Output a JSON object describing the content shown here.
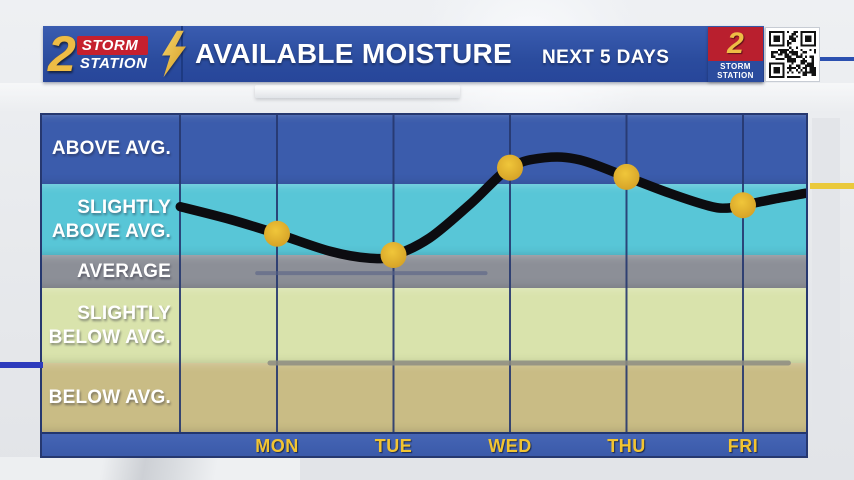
{
  "header": {
    "title": "AVAILABLE MOISTURE",
    "subtitle": "NEXT 5 DAYS"
  },
  "logos": {
    "main": {
      "number": "2",
      "line1": "STORM",
      "line2": "STATION"
    },
    "corner": {
      "number": "2",
      "line1": "STORM",
      "line2": "STATION"
    }
  },
  "colors": {
    "header_blue": "#2b4c9e",
    "day_bar_blue": "#3d5dac",
    "day_label_gold": "#f2c431",
    "grid_navy": "#26386f",
    "curve_black": "#0c0c10",
    "dot_gold": "#ddab2a",
    "accent_yellow_dash": "#eac93b",
    "accent_blue_dash": "#2d3bbd"
  },
  "chart_data": {
    "type": "line",
    "title": "AVAILABLE MOISTURE",
    "subtitle": "NEXT 5 DAYS",
    "categories": [
      "MON",
      "TUE",
      "WED",
      "THU",
      "FRI"
    ],
    "level_axis": {
      "min": -2.5,
      "max": 2.5,
      "note": "qualitative moisture bands, 0 = average"
    },
    "grid": "vertical gridline per day",
    "legend_position": "none",
    "y_bands": [
      {
        "label": "ABOVE AVG.",
        "level_range": [
          1.5,
          2.5
        ],
        "color": "#3b5cac"
      },
      {
        "label": "SLIGHTLY\nABOVE AVG.",
        "level_range": [
          0.5,
          1.5
        ],
        "color": "#58c6d7"
      },
      {
        "label": "AVERAGE",
        "level_range": [
          -0.5,
          0.5
        ],
        "color": "#8c8f97"
      },
      {
        "label": "SLIGHTLY\nBELOW AVG.",
        "level_range": [
          -1.5,
          -0.5
        ],
        "color": "#d9e3ac"
      },
      {
        "label": "BELOW AVG.",
        "level_range": [
          -2.5,
          -1.5
        ],
        "color": "#c9bc85"
      }
    ],
    "series": [
      {
        "name": "Available moisture",
        "line_color": "#0c0c10",
        "marker_color": "#ddab2a",
        "points": [
          {
            "day": "MON",
            "level": 0.8,
            "band": "SLIGHTLY ABOVE AVG."
          },
          {
            "day": "TUE",
            "level": 0.5,
            "band": "SLIGHTLY ABOVE AVG. (near average)"
          },
          {
            "day": "WED",
            "level": 1.73,
            "band": "ABOVE AVG."
          },
          {
            "day": "THU",
            "level": 1.6,
            "band": "ABOVE AVG."
          },
          {
            "day": "FRI",
            "level": 1.2,
            "band": "SLIGHTLY ABOVE AVG."
          }
        ],
        "curve_samples": [
          [
            -0.83,
            1.18
          ],
          [
            -0.4,
            1.0
          ],
          [
            0,
            0.8
          ],
          [
            0.46,
            0.55
          ],
          [
            0.8,
            0.4
          ],
          [
            1,
            0.48
          ],
          [
            1.31,
            0.74
          ],
          [
            1.66,
            1.22
          ],
          [
            2,
            1.73
          ],
          [
            2.3,
            1.87
          ],
          [
            2.6,
            1.84
          ],
          [
            3,
            1.6
          ],
          [
            3.37,
            1.37
          ],
          [
            3.71,
            1.19
          ],
          [
            3.86,
            1.16
          ],
          [
            4,
            1.2
          ],
          [
            4.27,
            1.29
          ],
          [
            4.54,
            1.37
          ]
        ]
      }
    ],
    "reference_lines": [
      {
        "from_day": -0.17,
        "to_day": 1.79,
        "level": -0.05,
        "color": "#5a6387",
        "opacity": 0.6,
        "width": 4
      },
      {
        "from_day": -0.06,
        "to_day": 4.39,
        "level": -1.5,
        "color": "#8e8d82",
        "opacity": 0.85,
        "width": 5
      }
    ]
  }
}
